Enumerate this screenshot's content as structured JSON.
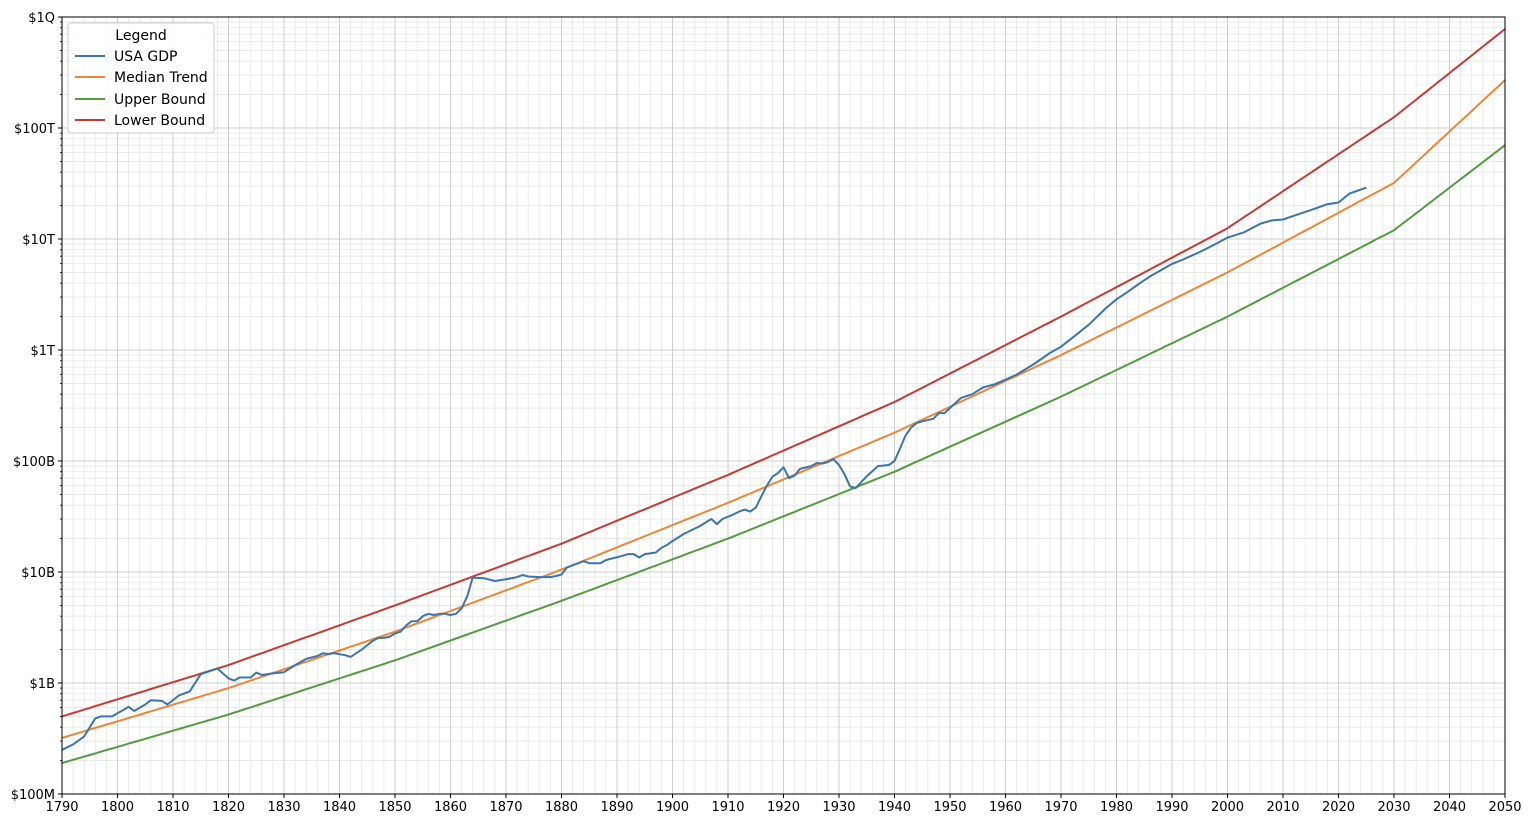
{
  "chart_data": {
    "type": "line",
    "title": "",
    "xlabel": "",
    "ylabel": "",
    "xlim": [
      1790,
      2050
    ],
    "ylim": [
      100000000,
      1000000000000000
    ],
    "yscale": "log",
    "grid": "major and minor",
    "legend": {
      "title": "Legend",
      "placement": "top-left",
      "entries": [
        "USA GDP",
        "Median Trend",
        "Upper Bound",
        "Lower Bound"
      ]
    },
    "x_ticks": [
      1790,
      1800,
      1810,
      1820,
      1830,
      1840,
      1850,
      1860,
      1870,
      1880,
      1890,
      1900,
      1910,
      1920,
      1930,
      1940,
      1950,
      1960,
      1970,
      1980,
      1990,
      2000,
      2010,
      2020,
      2030,
      2040,
      2050
    ],
    "y_ticks": [
      {
        "value": 100000000,
        "label": "$100M"
      },
      {
        "value": 1000000000,
        "label": "$1B"
      },
      {
        "value": 10000000000,
        "label": "$10B"
      },
      {
        "value": 100000000000,
        "label": "$100B"
      },
      {
        "value": 1000000000000,
        "label": "$1T"
      },
      {
        "value": 10000000000000,
        "label": "$10T"
      },
      {
        "value": 100000000000000,
        "label": "$100T"
      },
      {
        "value": 1000000000000000,
        "label": "$1Q"
      }
    ],
    "series": [
      {
        "name": "USA GDP",
        "color": "#3b75af",
        "x": [
          1790,
          1792,
          1794,
          1796,
          1797,
          1799,
          1801,
          1802,
          1803,
          1805,
          1806,
          1808,
          1809,
          1811,
          1813,
          1815,
          1818,
          1820,
          1821,
          1822,
          1824,
          1825,
          1826,
          1828,
          1830,
          1832,
          1834,
          1836,
          1837,
          1838,
          1839,
          1841,
          1842,
          1844,
          1846,
          1847,
          1848,
          1849,
          1850,
          1851,
          1852,
          1853,
          1854,
          1855,
          1856,
          1857,
          1858,
          1859,
          1860,
          1861,
          1862,
          1863,
          1864,
          1866,
          1868,
          1870,
          1872,
          1873,
          1874,
          1876,
          1878,
          1879,
          1880,
          1881,
          1882,
          1884,
          1885,
          1887,
          1888,
          1889,
          1891,
          1892,
          1893,
          1894,
          1895,
          1897,
          1898,
          1899,
          1900,
          1902,
          1905,
          1906,
          1907,
          1908,
          1909,
          1911,
          1912,
          1913,
          1914,
          1915,
          1916,
          1917,
          1918,
          1919,
          1920,
          1921,
          1922,
          1923,
          1925,
          1926,
          1927,
          1928,
          1929,
          1930,
          1931,
          1932,
          1933,
          1935,
          1937,
          1939,
          1940,
          1941,
          1942,
          1943,
          1944,
          1945,
          1947,
          1948,
          1949,
          1950,
          1952,
          1954,
          1956,
          1958,
          1960,
          1962,
          1965,
          1968,
          1970,
          1972,
          1975,
          1978,
          1980,
          1982,
          1984,
          1986,
          1988,
          1990,
          1992,
          1995,
          1998,
          2000,
          2003,
          2006,
          2008,
          2010,
          2012,
          2015,
          2018,
          2020,
          2022,
          2025
        ],
        "values": [
          250000000.0,
          280000000.0,
          330000000.0,
          480000000.0,
          500000000.0,
          500000000.0,
          570000000.0,
          610000000.0,
          560000000.0,
          640000000.0,
          700000000.0,
          690000000.0,
          640000000.0,
          770000000.0,
          840000000.0,
          1200000000.0,
          1350000000.0,
          1100000000.0,
          1050000000.0,
          1120000000.0,
          1120000000.0,
          1240000000.0,
          1180000000.0,
          1220000000.0,
          1250000000.0,
          1450000000.0,
          1650000000.0,
          1750000000.0,
          1850000000.0,
          1820000000.0,
          1860000000.0,
          1780000000.0,
          1720000000.0,
          2000000000.0,
          2400000000.0,
          2550000000.0,
          2550000000.0,
          2600000000.0,
          2800000000.0,
          2900000000.0,
          3300000000.0,
          3600000000.0,
          3600000000.0,
          4000000000.0,
          4200000000.0,
          4100000000.0,
          4200000000.0,
          4200000000.0,
          4100000000.0,
          4200000000.0,
          4700000000.0,
          6000000000.0,
          8900000000.0,
          8800000000.0,
          8300000000.0,
          8600000000.0,
          9000000000.0,
          9400000000.0,
          9100000000.0,
          9000000000.0,
          9000000000.0,
          9200000000.0,
          9500000000.0,
          11000000000.0,
          11500000000.0,
          12500000000.0,
          12000000000.0,
          12000000000.0,
          12800000000.0,
          13200000000.0,
          14000000000.0,
          14500000000.0,
          14500000000.0,
          13500000000.0,
          14500000000.0,
          15000000000.0,
          16500000000.0,
          17500000000.0,
          19000000000.0,
          22000000000.0,
          26000000000.0,
          28000000000.0,
          30000000000.0,
          27000000000.0,
          30000000000.0,
          33000000000.0,
          35000000000.0,
          36500000000.0,
          35000000000.0,
          38000000000.0,
          48000000000.0,
          60000000000.0,
          72000000000.0,
          78000000000.0,
          88000000000.0,
          70000000000.0,
          74000000000.0,
          85000000000.0,
          90000000000.0,
          96000000000.0,
          95000000000.0,
          98000000000.0,
          104000000000.0,
          92000000000.0,
          76000000000.0,
          59000000000.0,
          57000000000.0,
          73000000000.0,
          90000000000.0,
          92000000000.0,
          100000000000.0,
          130000000000.0,
          170000000000.0,
          200000000000.0,
          220000000000.0,
          228000000000.0,
          240000000000.0,
          270000000000.0,
          270000000000.0,
          300000000000.0,
          370000000000.0,
          400000000000.0,
          460000000000.0,
          490000000000.0,
          540000000000.0,
          600000000000.0,
          740000000000.0,
          940000000000.0,
          1070000000000.0,
          1280000000000.0,
          1690000000000.0,
          2360000000000.0,
          2860000000000.0,
          3340000000000.0,
          3930000000000.0,
          4590000000000.0,
          5240000000000.0,
          5960000000000.0,
          6540000000000.0,
          7640000000000.0,
          9090000000000.0,
          10300000000000.0,
          11500000000000.0,
          13800000000000.0,
          14700000000000.0,
          15000000000000.0,
          16200000000000.0,
          18200000000000.0,
          20600000000000.0,
          21300000000000.0,
          25700000000000.0,
          29000000000000.0
        ]
      },
      {
        "name": "Median Trend",
        "color": "#ef8536",
        "x": [
          1790,
          1820,
          1850,
          1880,
          1910,
          1940,
          1970,
          2000,
          2030,
          2050
        ],
        "values": [
          320000000.0,
          900000000.0,
          2900000000.0,
          10500000000.0,
          42000000000.0,
          180000000000.0,
          900000000000.0,
          5000000000000.0,
          32000000000000.0,
          270000000000000.0
        ]
      },
      {
        "name": "Upper Bound",
        "color": "#519d3e",
        "x": [
          1790,
          1820,
          1850,
          1880,
          1910,
          1940,
          1970,
          2000,
          2030,
          2050
        ],
        "values": [
          190000000.0,
          520000000.0,
          1600000000.0,
          5500000000.0,
          20000000000.0,
          80000000000.0,
          380000000000.0,
          2000000000000.0,
          12000000000000.0,
          70000000000000.0
        ]
      },
      {
        "name": "Lower Bound",
        "color": "#c53a32",
        "x": [
          1790,
          1820,
          1850,
          1880,
          1910,
          1940,
          1970,
          2000,
          2030,
          2050
        ],
        "values": [
          500000000.0,
          1450000000.0,
          5000000000.0,
          18000000000.0,
          75000000000.0,
          340000000000.0,
          2000000000000.0,
          12500000000000.0,
          125000000000000.0,
          780000000000000.0
        ]
      }
    ]
  }
}
